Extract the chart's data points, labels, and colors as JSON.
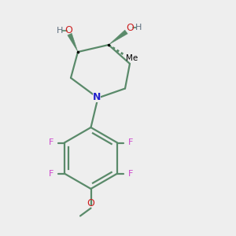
{
  "bg_color": "#eeeeee",
  "bond_color": "#5a8a6a",
  "N_color": "#2222cc",
  "O_color": "#cc2020",
  "O_color2": "#cc2020",
  "F_color": "#cc44cc",
  "O_gray_color": "#607080",
  "H_color": "#607080",
  "fig_width": 3.0,
  "fig_height": 3.0,
  "dpi": 100,
  "xlim": [
    0,
    10
  ],
  "ylim": [
    0,
    10
  ]
}
